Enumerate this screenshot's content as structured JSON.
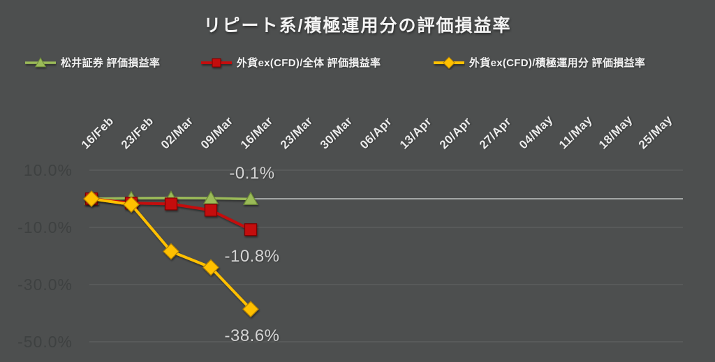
{
  "title": "リピート系/積極運用分の評価損益率",
  "background_color": "#4d4f4f",
  "chart_data": {
    "type": "line",
    "title": "リピート系/積極運用分の評価損益率",
    "legend_position": "top",
    "x_label_rotation_deg": 45,
    "grid": true,
    "ylim": [
      -50,
      10
    ],
    "categories": [
      "16/Feb",
      "23/Feb",
      "02/Mar",
      "09/Mar",
      "16/Mar",
      "23/Mar",
      "30/Mar",
      "06/Apr",
      "13/Apr",
      "20/Apr",
      "27/Apr",
      "04/May",
      "11/May",
      "18/May",
      "25/May"
    ],
    "series": [
      {
        "name": "松井証券 評価損益率",
        "marker": "triangle",
        "color": "#9bbb59",
        "edge_color": "#6d8b38",
        "line_width": 3.5,
        "values": [
          0.0,
          0.2,
          0.3,
          0.2,
          -0.1,
          null,
          null,
          null,
          null,
          null,
          null,
          null,
          null,
          null,
          null
        ]
      },
      {
        "name": "外貨ex(CFD)/全体 評価損益率",
        "marker": "square",
        "color": "#c40d0d",
        "edge_color": "#7d0404",
        "line_width": 4,
        "values": [
          0.0,
          -1.5,
          -1.8,
          -4.0,
          -10.8,
          null,
          null,
          null,
          null,
          null,
          null,
          null,
          null,
          null,
          null
        ]
      },
      {
        "name": "外貨ex(CFD)/積極運用分 評価損益率",
        "marker": "diamond",
        "color": "#ffc000",
        "edge_color": "#b88600",
        "line_width": 4,
        "values": [
          0.0,
          -2.0,
          -18.4,
          -24.0,
          -38.6,
          null,
          null,
          null,
          null,
          null,
          null,
          null,
          null,
          null,
          null
        ]
      }
    ],
    "y_axis": {
      "ticks": [
        {
          "value": 10,
          "label": "10.0%"
        },
        {
          "value": -10,
          "label": "-10.0%"
        },
        {
          "value": -30,
          "label": "-30.0%"
        },
        {
          "value": -50,
          "label": "-50.0%"
        }
      ],
      "zero_line_value": 0
    },
    "data_labels": [
      {
        "series": 0,
        "point": 4,
        "text": "-0.1%",
        "position": "above"
      },
      {
        "series": 1,
        "point": 4,
        "text": "-10.8%",
        "position": "below"
      },
      {
        "series": 2,
        "point": 4,
        "text": "-38.6%",
        "position": "below"
      }
    ],
    "style": {
      "gridline_color": "#636665",
      "zero_line_color": "#a3a6a5",
      "x_label_color": "#ededed",
      "y_label_color": "#3e4141",
      "data_label_color": "#d4d4d4"
    }
  }
}
